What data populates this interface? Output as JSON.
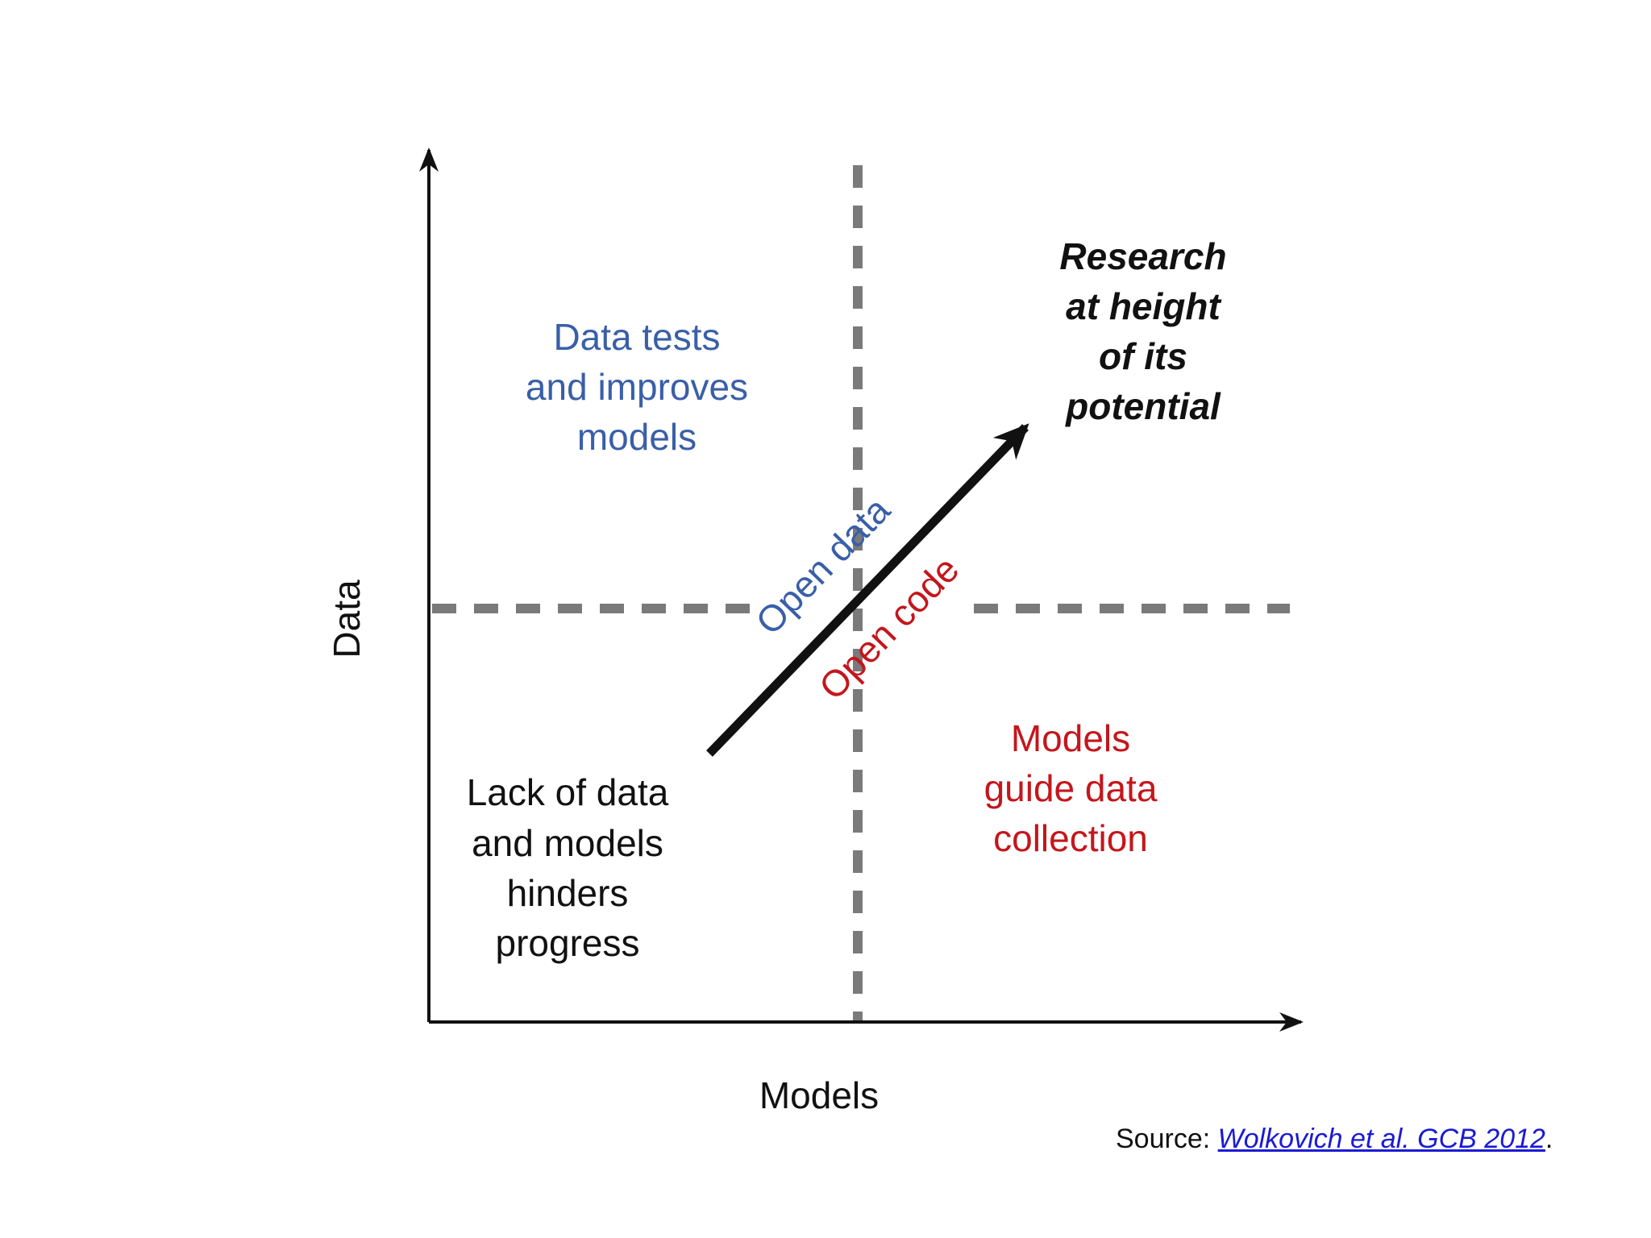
{
  "diagram": {
    "axes": {
      "y_label": "Data",
      "x_label": "Models"
    },
    "quadrants": {
      "top_left": {
        "lines": [
          "Data tests",
          "and improves",
          "models"
        ],
        "color": "#3a5fa8"
      },
      "bottom_right": {
        "lines": [
          "Models",
          "guide data",
          "collection"
        ],
        "color": "#c4161c"
      },
      "bottom_left": {
        "lines": [
          "Lack of data",
          "and models",
          "hinders",
          "progress"
        ],
        "color": "#111111"
      },
      "top_right": {
        "lines": [
          "Research",
          "at height",
          "of its",
          "potential"
        ],
        "color": "#111111"
      }
    },
    "arrow": {
      "label_upper": "Open data",
      "label_upper_color": "#3a5fa8",
      "label_lower": "Open code",
      "label_lower_color": "#c4161c"
    },
    "divider_color": "#7a7a7a"
  },
  "caption": {
    "prefix": "Source: ",
    "link_text": "Wolkovich et al. GCB 2012",
    "suffix": "."
  }
}
